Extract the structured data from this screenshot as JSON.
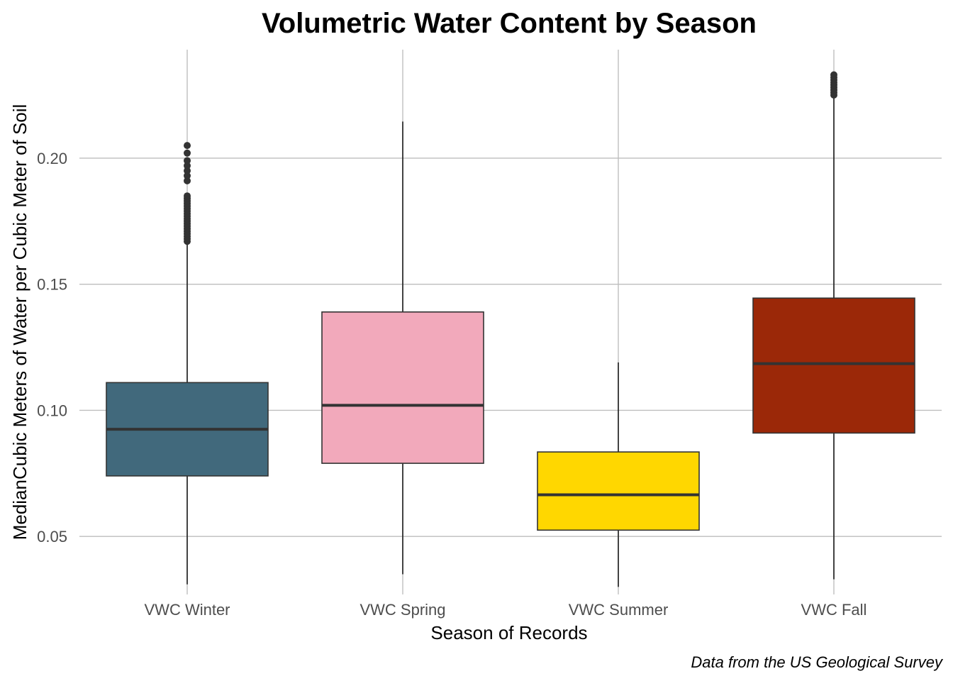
{
  "chart_data": {
    "type": "box",
    "title": "Volumetric Water Content by Season",
    "xlabel": "Season of Records",
    "ylabel": "MedianCubic Meters of Water per Cubic Meter of Soil",
    "caption": "Data from the US Geological Survey",
    "ylim": [
      0.027,
      0.243
    ],
    "yticks": [
      0.05,
      0.1,
      0.15,
      0.2
    ],
    "ytick_labels": [
      "0.05",
      "0.10",
      "0.15",
      "0.20"
    ],
    "grid": true,
    "legend": "none",
    "categories": [
      "VWC Winter",
      "VWC Spring",
      "VWC Summer",
      "VWC Fall"
    ],
    "boxes": [
      {
        "category": "VWC Winter",
        "color": "#41697C",
        "whisker_low": 0.031,
        "q1": 0.074,
        "median": 0.0925,
        "q3": 0.111,
        "whisker_high": 0.167,
        "outliers": [
          0.167,
          0.168,
          0.169,
          0.17,
          0.171,
          0.172,
          0.173,
          0.174,
          0.175,
          0.176,
          0.177,
          0.178,
          0.179,
          0.18,
          0.181,
          0.182,
          0.183,
          0.184,
          0.185,
          0.191,
          0.193,
          0.195,
          0.197,
          0.199,
          0.202,
          0.205
        ]
      },
      {
        "category": "VWC Spring",
        "color": "#F2A9BB",
        "whisker_low": 0.035,
        "q1": 0.079,
        "median": 0.102,
        "q3": 0.139,
        "whisker_high": 0.2145,
        "outliers": []
      },
      {
        "category": "VWC Summer",
        "color": "#FFD700",
        "whisker_low": 0.03,
        "q1": 0.0525,
        "median": 0.0665,
        "q3": 0.0835,
        "whisker_high": 0.119,
        "outliers": []
      },
      {
        "category": "VWC Fall",
        "color": "#9B2808",
        "whisker_low": 0.033,
        "q1": 0.091,
        "median": 0.1185,
        "q3": 0.1445,
        "whisker_high": 0.225,
        "outliers": [
          0.225,
          0.226,
          0.227,
          0.228,
          0.229,
          0.23,
          0.231,
          0.232,
          0.233
        ]
      }
    ]
  }
}
